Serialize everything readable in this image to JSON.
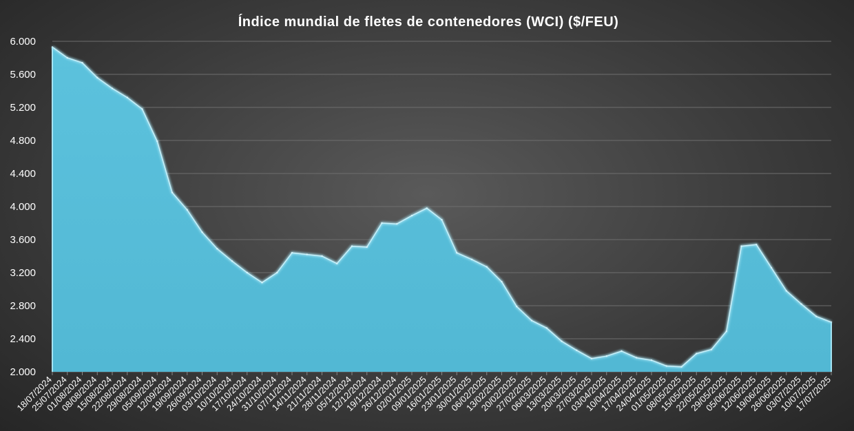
{
  "chart_data": {
    "type": "area",
    "title": "Índice mundial de fletes de contenedores (WCI) ($/FEU)",
    "xlabel": "",
    "ylabel": "",
    "ylim": [
      2000,
      6000
    ],
    "yticks": [
      2000,
      2400,
      2800,
      3200,
      3600,
      4000,
      4400,
      4800,
      5200,
      5600,
      6000
    ],
    "ytick_labels": [
      "2.000",
      "2.400",
      "2.800",
      "3.200",
      "3.600",
      "4.000",
      "4.400",
      "4.800",
      "5.200",
      "5.600",
      "6.000"
    ],
    "grid": true,
    "legend": "none",
    "colors": {
      "fill": "#52b8d4",
      "line": "#a6e4f3"
    },
    "x": [
      "18/07/2024",
      "25/07/2024",
      "01/08/2024",
      "08/08/2024",
      "15/08/2024",
      "22/08/2024",
      "29/08/2024",
      "05/09/2024",
      "12/09/2024",
      "19/09/2024",
      "26/09/2024",
      "03/10/2024",
      "10/10/2024",
      "17/10/2024",
      "24/10/2024",
      "31/10/2024",
      "07/11/2024",
      "14/11/2024",
      "21/11/2024",
      "28/11/2024",
      "05/12/2024",
      "12/12/2024",
      "19/12/2024",
      "26/12/2024",
      "02/01/2025",
      "09/01/2025",
      "16/01/2025",
      "23/01/2025",
      "30/01/2025",
      "06/02/2025",
      "13/02/2025",
      "20/02/2025",
      "27/02/2025",
      "06/03/2025",
      "13/03/2025",
      "20/03/2025",
      "27/03/2025",
      "03/04/2025",
      "10/04/2025",
      "17/04/2025",
      "24/04/2025",
      "01/05/2025",
      "08/05/2025",
      "15/05/2025",
      "22/05/2025",
      "29/05/2025",
      "05/06/2025",
      "12/06/2025",
      "19/06/2025",
      "26/06/2025",
      "03/07/2025",
      "10/07/2025",
      "17/07/2025"
    ],
    "series": [
      {
        "name": "",
        "values": [
          5930,
          5800,
          5740,
          5560,
          5430,
          5320,
          5180,
          4790,
          4170,
          3960,
          3690,
          3490,
          3340,
          3200,
          3080,
          3200,
          3440,
          3420,
          3400,
          3310,
          3520,
          3510,
          3800,
          3790,
          3890,
          3980,
          3840,
          3440,
          3360,
          3270,
          3090,
          2790,
          2620,
          2530,
          2370,
          2260,
          2160,
          2190,
          2250,
          2170,
          2140,
          2070,
          2060,
          2220,
          2270,
          2490,
          3520,
          3540,
          3260,
          2980,
          2820,
          2670,
          2600
        ]
      }
    ]
  }
}
